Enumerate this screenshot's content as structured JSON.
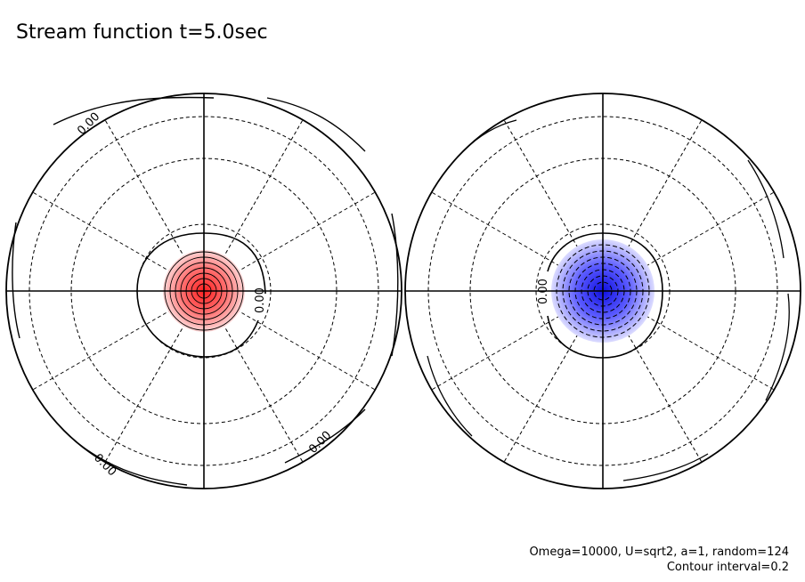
{
  "title": "Stream function t=5.0sec",
  "params_line1": "Omega=10000, U=sqrt2, a=1, random=124",
  "params_line2": "Contour interval=0.2",
  "hemispheres": [
    {
      "name": "left",
      "sign": "positive",
      "fill_color": "#ff3333",
      "contour_labels": [
        "0.00",
        "0.00",
        "0.00",
        "0.00"
      ]
    },
    {
      "name": "right",
      "sign": "negative",
      "fill_color": "#3333ff",
      "contour_labels": [
        "0.00"
      ]
    }
  ],
  "colors": {
    "positive": "#ff3030",
    "negative": "#3030ff",
    "line": "#000000"
  }
}
